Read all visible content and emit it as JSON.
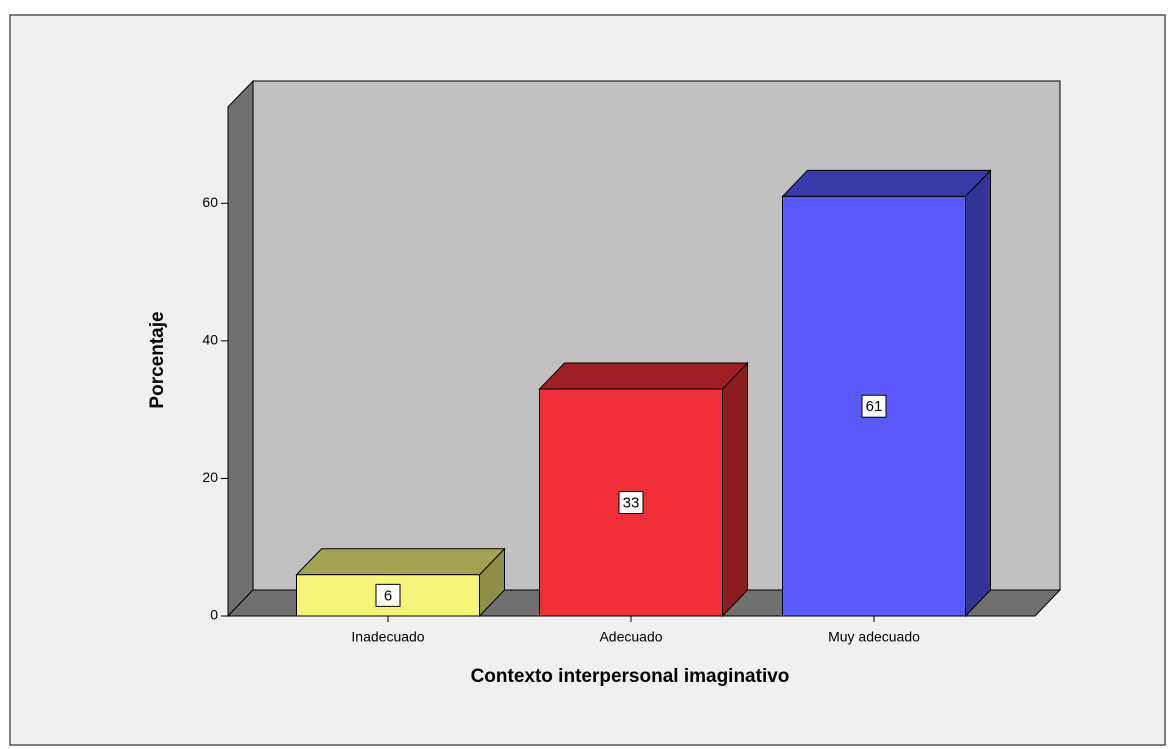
{
  "chart_data": {
    "type": "bar3d",
    "categories": [
      "Inadecuado",
      "Adecuado",
      "Muy adecuado"
    ],
    "values": [
      6,
      33,
      61
    ],
    "colors": [
      "#f5f57a",
      "#ef3038",
      "#5a5aff"
    ],
    "xlabel": "Contexto interpersonal imaginativo",
    "ylabel": "Porcentaje",
    "ylim": [
      0,
      74
    ],
    "yticks": [
      0,
      20,
      40,
      60
    ]
  }
}
